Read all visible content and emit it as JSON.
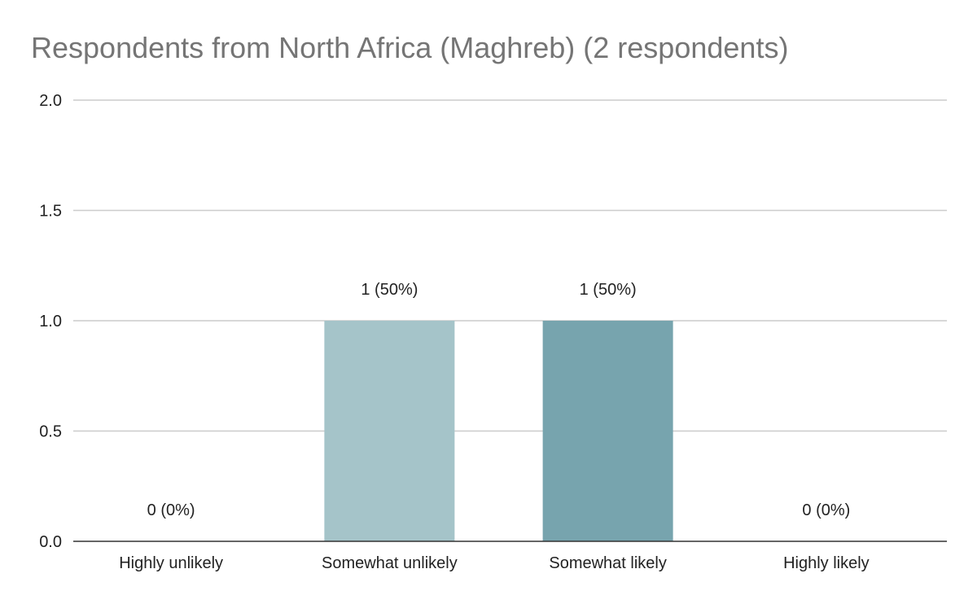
{
  "chart_data": {
    "type": "bar",
    "title": "Respondents from North Africa (Maghreb) (2 respondents)",
    "categories": [
      "Highly unlikely",
      "Somewhat unlikely",
      "Somewhat likely",
      "Highly likely"
    ],
    "values": [
      0,
      1,
      1,
      0
    ],
    "data_labels": [
      "0 (0%)",
      "1 (50%)",
      "1 (50%)",
      "0 (0%)"
    ],
    "bar_colors": [
      "#a5c4c9",
      "#a5c4c9",
      "#77a4ae",
      "#77a4ae"
    ],
    "ylim": [
      0,
      2
    ],
    "yticks": [
      0,
      0.5,
      1,
      1.5,
      2
    ],
    "ytick_labels": [
      "0.0",
      "0.5",
      "1.0",
      "1.5",
      "2.0"
    ],
    "grid": true,
    "legend": "none",
    "xlabel": "",
    "ylabel": ""
  }
}
